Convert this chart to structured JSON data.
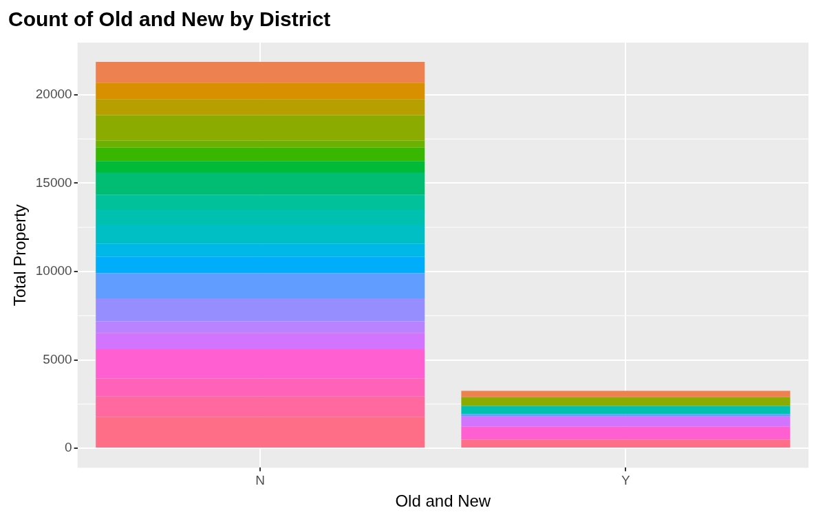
{
  "chart_data": {
    "type": "bar",
    "title": "Count of Old and New by District",
    "xlabel": "Old and New",
    "ylabel": "Total Property",
    "categories": [
      "N",
      "Y"
    ],
    "stacked": true,
    "ylim": [
      -1100,
      22950
    ],
    "yticks": [
      0,
      5000,
      10000,
      15000,
      20000
    ],
    "grid": true,
    "legend": false,
    "series": [
      {
        "color": "#ff6e87",
        "values": [
          1760,
          490
        ]
      },
      {
        "color": "#ff69a0",
        "values": [
          1170,
          null
        ]
      },
      {
        "color": "#ff62b8",
        "values": [
          1020,
          null
        ]
      },
      {
        "color": "#ff5fd0",
        "values": [
          1650,
          730
        ]
      },
      {
        "color": "#d374ff",
        "values": [
          930,
          580
        ]
      },
      {
        "color": "#b983ff",
        "values": [
          650,
          null
        ]
      },
      {
        "color": "#968eff",
        "values": [
          1300,
          null
        ]
      },
      {
        "color": "#619cff",
        "values": [
          1420,
          130
        ]
      },
      {
        "color": "#00adfa",
        "values": [
          930,
          null
        ]
      },
      {
        "color": "#00b8e7",
        "values": [
          750,
          null
        ]
      },
      {
        "color": "#00bfc4",
        "values": [
          1060,
          null
        ]
      },
      {
        "color": "#00c0b0",
        "values": [
          860,
          470
        ]
      },
      {
        "color": "#00c19a",
        "values": [
          850,
          null
        ]
      },
      {
        "color": "#00bd73",
        "values": [
          1250,
          null
        ]
      },
      {
        "color": "#00ba38",
        "values": [
          650,
          null
        ]
      },
      {
        "color": "#39b600",
        "values": [
          770,
          null
        ]
      },
      {
        "color": "#6bb100",
        "values": [
          390,
          null
        ]
      },
      {
        "color": "#8cab00",
        "values": [
          1440,
          490
        ]
      },
      {
        "color": "#b79f00",
        "values": [
          900,
          null
        ]
      },
      {
        "color": "#d89000",
        "values": [
          930,
          null
        ]
      },
      {
        "color": "#ee8150",
        "values": [
          1180,
          360
        ]
      }
    ]
  }
}
